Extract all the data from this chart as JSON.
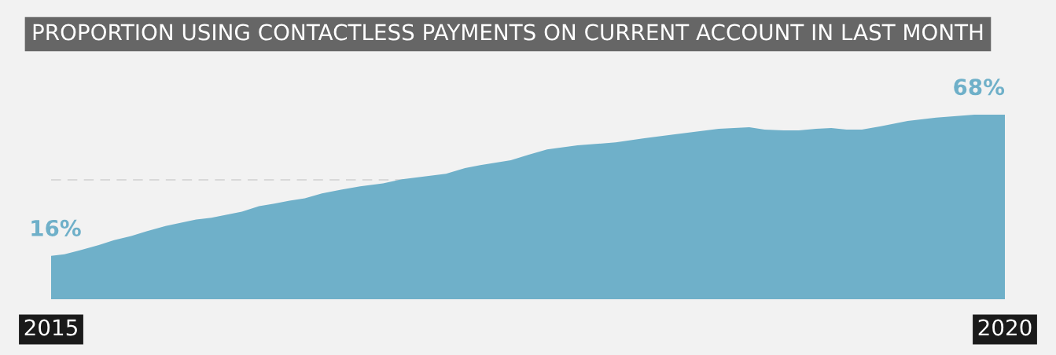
{
  "chart_data": {
    "type": "area",
    "title": "PROPORTION USING CONTACTLESS PAYMENTS ON CURRENT ACCOUNT IN LAST MONTH",
    "x": [
      2015.0,
      2015.07,
      2015.15,
      2015.25,
      2015.33,
      2015.42,
      2015.5,
      2015.6,
      2015.76,
      2015.84,
      2016.0,
      2016.09,
      2016.17,
      2016.25,
      2016.33,
      2016.42,
      2016.52,
      2016.62,
      2016.74,
      2016.84,
      2016.93,
      2017.07,
      2017.17,
      2017.25,
      2017.41,
      2017.5,
      2017.6,
      2017.76,
      2017.96,
      2018.11,
      2018.27,
      2018.5,
      2018.66,
      2018.74,
      2018.84,
      2018.92,
      2019.01,
      2019.09,
      2019.17,
      2019.25,
      2019.35,
      2019.49,
      2019.64,
      2019.84,
      2020.0
    ],
    "series": [
      {
        "color": "#6fb0c9",
        "values": [
          16,
          16.6,
          18,
          20,
          21.8,
          23.3,
          25,
          27,
          29.4,
          30,
          32.3,
          34.3,
          35.2,
          36.3,
          37.2,
          39,
          40.4,
          41.6,
          42.7,
          44.2,
          45,
          46.2,
          48.3,
          49.4,
          51.2,
          53.2,
          55.2,
          56.7,
          57.8,
          59.3,
          60.8,
          62.8,
          63.4,
          62.5,
          62.2,
          62.2,
          62.8,
          63.1,
          62.5,
          62.5,
          63.7,
          65.7,
          66.9,
          68,
          68
        ],
        "value_labels": [
          "16%",
          null,
          null,
          null,
          null,
          null,
          null,
          null,
          null,
          null,
          null,
          null,
          null,
          null,
          null,
          null,
          null,
          null,
          null,
          null,
          null,
          null,
          null,
          null,
          null,
          null,
          null,
          null,
          null,
          null,
          null,
          null,
          null,
          null,
          null,
          null,
          null,
          null,
          null,
          null,
          null,
          null,
          null,
          null,
          "68%"
        ]
      }
    ],
    "xlim": [
      2015,
      2020
    ],
    "xticks": [
      2015,
      2020
    ],
    "tick_labels": "x",
    "grid": false,
    "legend": false,
    "ref_lines": [
      {
        "axis": "y",
        "value": 44,
        "color": "#d9d9d9",
        "line_style": "dashed"
      }
    ]
  }
}
